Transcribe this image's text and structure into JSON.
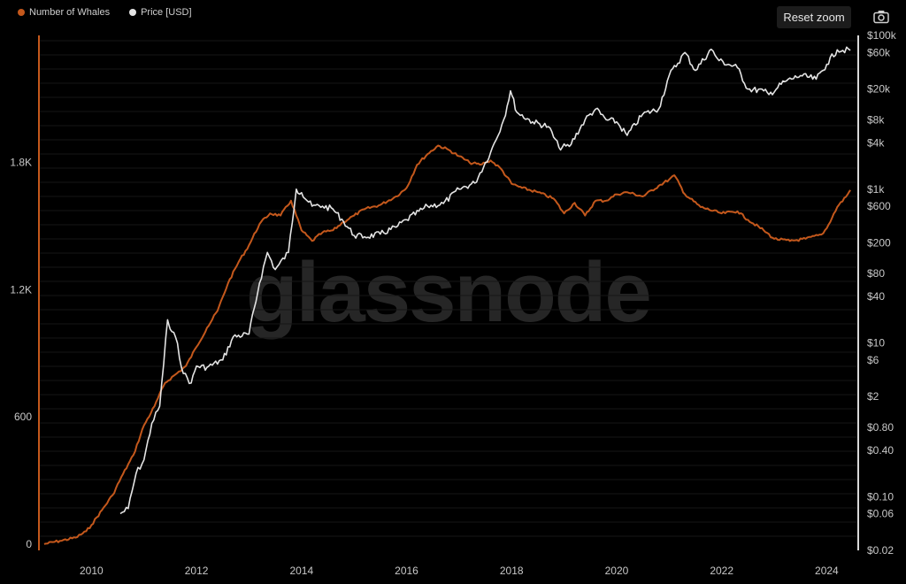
{
  "watermark": "glassnode",
  "toolbar": {
    "reset_zoom_label": "Reset zoom",
    "camera_icon": "camera-icon"
  },
  "colors": {
    "whales": "#c4581c",
    "price": "#e4e4e4",
    "grid": "#161616",
    "right_axis": "#d9d9d9"
  },
  "chart_data": {
    "type": "line",
    "legend": [
      "Number of Whales",
      "Price [USD]"
    ],
    "legend_placement": "top-left",
    "x_ticks": [
      "2010",
      "2012",
      "2014",
      "2016",
      "2018",
      "2020",
      "2022",
      "2024"
    ],
    "x_tick_years": [
      2010,
      2012,
      2014,
      2016,
      2018,
      2020,
      2022,
      2024
    ],
    "xlim": [
      2009.0,
      2024.6
    ],
    "left_axis": {
      "ticks": [
        "0",
        "600",
        "1.2K",
        "1.8K"
      ],
      "tick_values": [
        0,
        600,
        1200,
        1800
      ],
      "ylim": [
        -30,
        2400
      ]
    },
    "right_axis": {
      "scale": "log",
      "ticks": [
        "$100k",
        "$60k",
        "$20k",
        "$8k",
        "$4k",
        "$1k",
        "$600",
        "$200",
        "$80",
        "$40",
        "$10",
        "$6",
        "$2",
        "$0.80",
        "$0.40",
        "$0.10",
        "$0.06",
        "$0.02"
      ],
      "tick_values": [
        100000,
        60000,
        20000,
        8000,
        4000,
        1000,
        600,
        200,
        80,
        40,
        10,
        6,
        2,
        0.8,
        0.4,
        0.1,
        0.06,
        0.02
      ],
      "ylim": [
        0.02,
        100000
      ]
    },
    "grid": true,
    "series": [
      {
        "name": "Number of Whales",
        "axis": "left",
        "points": [
          [
            2009.1,
            0
          ],
          [
            2009.4,
            15
          ],
          [
            2009.7,
            30
          ],
          [
            2009.9,
            60
          ],
          [
            2010.0,
            90
          ],
          [
            2010.2,
            160
          ],
          [
            2010.4,
            230
          ],
          [
            2010.6,
            330
          ],
          [
            2010.8,
            420
          ],
          [
            2011.0,
            560
          ],
          [
            2011.2,
            650
          ],
          [
            2011.4,
            760
          ],
          [
            2011.6,
            800
          ],
          [
            2011.8,
            840
          ],
          [
            2012.0,
            930
          ],
          [
            2012.2,
            1020
          ],
          [
            2012.4,
            1100
          ],
          [
            2012.6,
            1230
          ],
          [
            2012.8,
            1330
          ],
          [
            2013.0,
            1410
          ],
          [
            2013.2,
            1510
          ],
          [
            2013.4,
            1560
          ],
          [
            2013.6,
            1550
          ],
          [
            2013.8,
            1620
          ],
          [
            2014.0,
            1480
          ],
          [
            2014.2,
            1430
          ],
          [
            2014.4,
            1470
          ],
          [
            2014.6,
            1480
          ],
          [
            2014.8,
            1520
          ],
          [
            2015.0,
            1550
          ],
          [
            2015.2,
            1580
          ],
          [
            2015.5,
            1600
          ],
          [
            2015.8,
            1640
          ],
          [
            2016.0,
            1680
          ],
          [
            2016.2,
            1790
          ],
          [
            2016.4,
            1840
          ],
          [
            2016.6,
            1880
          ],
          [
            2016.8,
            1860
          ],
          [
            2017.0,
            1830
          ],
          [
            2017.2,
            1800
          ],
          [
            2017.4,
            1790
          ],
          [
            2017.6,
            1810
          ],
          [
            2017.8,
            1770
          ],
          [
            2018.0,
            1700
          ],
          [
            2018.2,
            1680
          ],
          [
            2018.5,
            1660
          ],
          [
            2018.8,
            1630
          ],
          [
            2019.0,
            1560
          ],
          [
            2019.2,
            1610
          ],
          [
            2019.4,
            1550
          ],
          [
            2019.6,
            1620
          ],
          [
            2019.8,
            1620
          ],
          [
            2020.0,
            1650
          ],
          [
            2020.2,
            1660
          ],
          [
            2020.5,
            1640
          ],
          [
            2020.8,
            1690
          ],
          [
            2021.0,
            1720
          ],
          [
            2021.1,
            1740
          ],
          [
            2021.3,
            1650
          ],
          [
            2021.6,
            1590
          ],
          [
            2022.0,
            1560
          ],
          [
            2022.3,
            1570
          ],
          [
            2022.5,
            1530
          ],
          [
            2022.8,
            1480
          ],
          [
            2023.0,
            1440
          ],
          [
            2023.3,
            1430
          ],
          [
            2023.6,
            1440
          ],
          [
            2023.9,
            1460
          ],
          [
            2024.0,
            1490
          ],
          [
            2024.2,
            1590
          ],
          [
            2024.4,
            1650
          ],
          [
            2024.45,
            1670
          ]
        ]
      },
      {
        "name": "Price [USD]",
        "axis": "right",
        "points": [
          [
            2010.55,
            0.06
          ],
          [
            2010.7,
            0.07
          ],
          [
            2010.85,
            0.2
          ],
          [
            2011.0,
            0.3
          ],
          [
            2011.15,
            0.9
          ],
          [
            2011.3,
            1.5
          ],
          [
            2011.45,
            20
          ],
          [
            2011.5,
            15
          ],
          [
            2011.6,
            12
          ],
          [
            2011.75,
            4
          ],
          [
            2011.9,
            3
          ],
          [
            2012.0,
            5
          ],
          [
            2012.2,
            4.8
          ],
          [
            2012.5,
            6
          ],
          [
            2012.7,
            12
          ],
          [
            2013.0,
            13
          ],
          [
            2013.2,
            60
          ],
          [
            2013.35,
            150
          ],
          [
            2013.5,
            90
          ],
          [
            2013.75,
            150
          ],
          [
            2013.9,
            1000
          ],
          [
            2014.0,
            900
          ],
          [
            2014.2,
            600
          ],
          [
            2014.4,
            600
          ],
          [
            2014.6,
            550
          ],
          [
            2014.8,
            380
          ],
          [
            2015.0,
            250
          ],
          [
            2015.2,
            240
          ],
          [
            2015.5,
            260
          ],
          [
            2015.8,
            320
          ],
          [
            2016.0,
            400
          ],
          [
            2016.4,
            600
          ],
          [
            2016.7,
            650
          ],
          [
            2017.0,
            1000
          ],
          [
            2017.3,
            1200
          ],
          [
            2017.6,
            3000
          ],
          [
            2017.85,
            8000
          ],
          [
            2017.98,
            19000
          ],
          [
            2018.1,
            10000
          ],
          [
            2018.4,
            7500
          ],
          [
            2018.7,
            6500
          ],
          [
            2018.9,
            3500
          ],
          [
            2019.1,
            3600
          ],
          [
            2019.4,
            8000
          ],
          [
            2019.6,
            11000
          ],
          [
            2019.8,
            8000
          ],
          [
            2020.0,
            7500
          ],
          [
            2020.2,
            5000
          ],
          [
            2020.5,
            9500
          ],
          [
            2020.8,
            11000
          ],
          [
            2021.0,
            30000
          ],
          [
            2021.3,
            60000
          ],
          [
            2021.5,
            35000
          ],
          [
            2021.8,
            66000
          ],
          [
            2021.95,
            47000
          ],
          [
            2022.3,
            38000
          ],
          [
            2022.5,
            20000
          ],
          [
            2022.8,
            19000
          ],
          [
            2022.9,
            17000
          ],
          [
            2023.2,
            25000
          ],
          [
            2023.5,
            30000
          ],
          [
            2023.8,
            27000
          ],
          [
            2024.0,
            42000
          ],
          [
            2024.2,
            65000
          ],
          [
            2024.45,
            64000
          ]
        ]
      }
    ]
  }
}
